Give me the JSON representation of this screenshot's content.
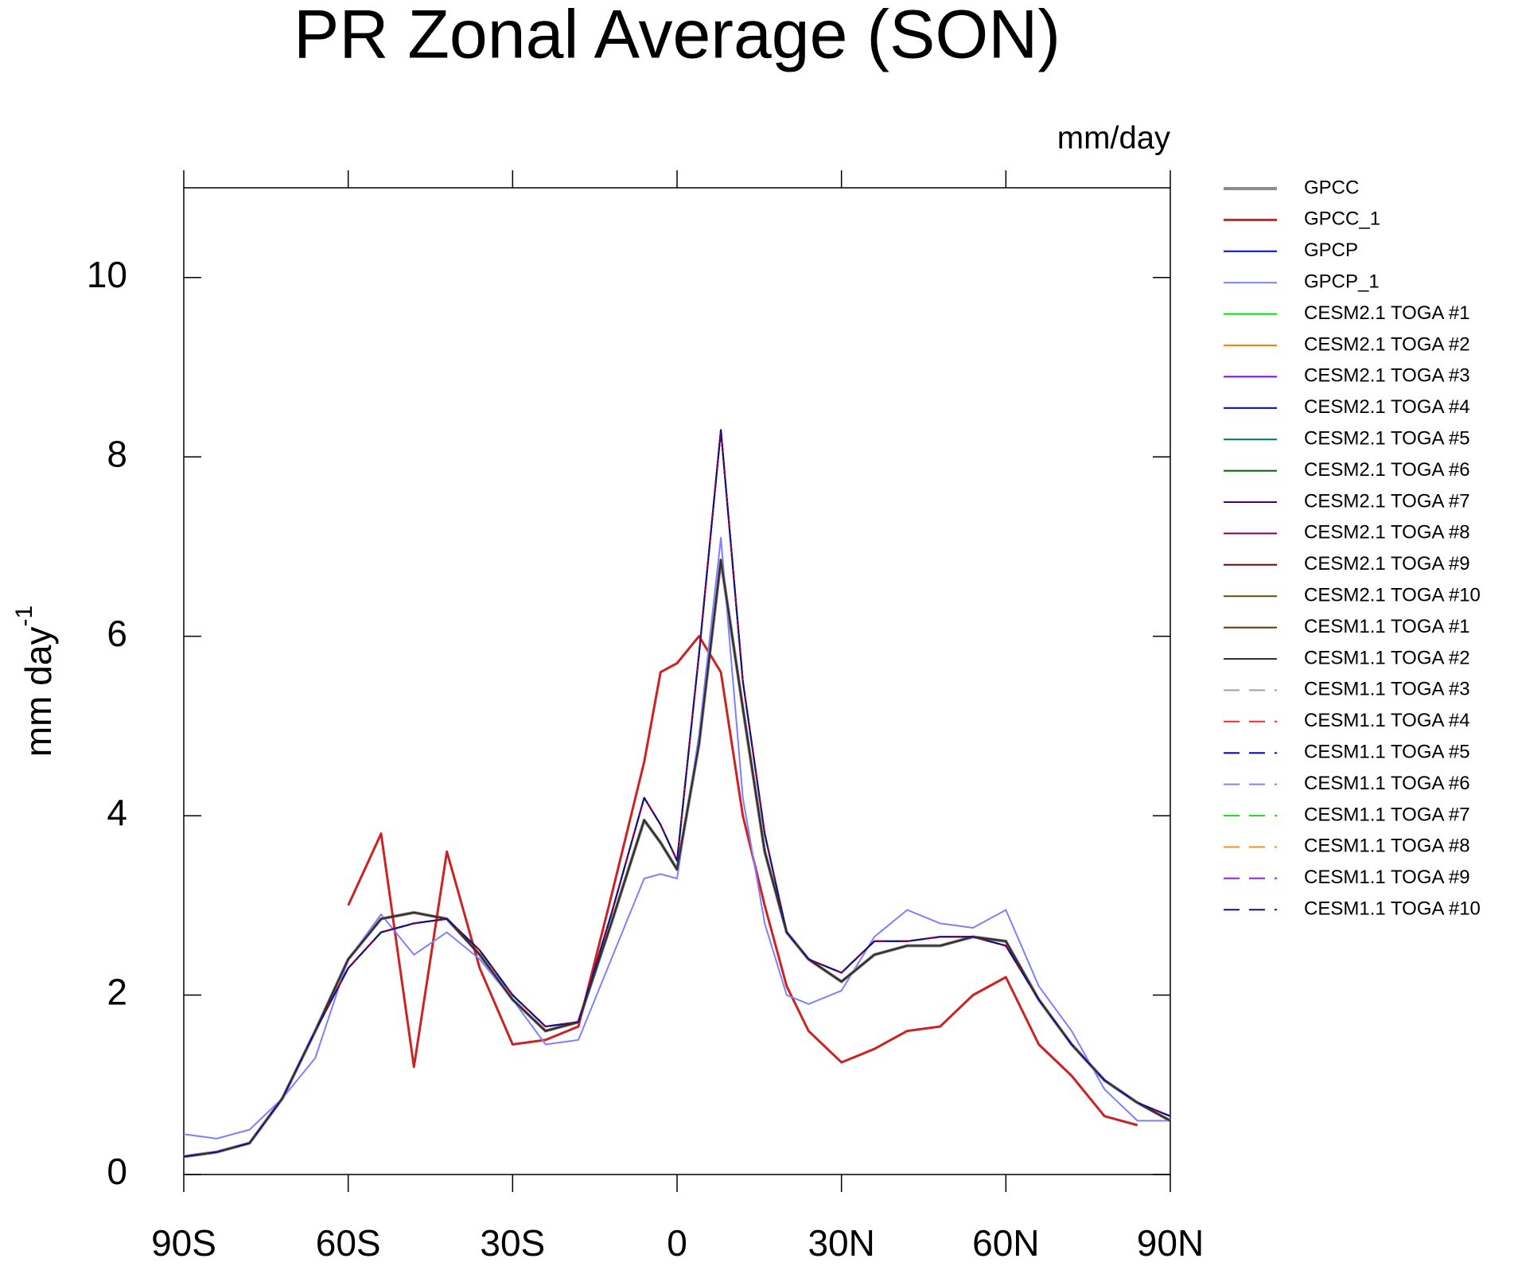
{
  "chart_data": {
    "type": "line",
    "title": "PR Zonal Average (SON)",
    "units_label": "mm/day",
    "ylabel": "mm day",
    "ylabel_exp": "-1",
    "xlim": [
      -90,
      90
    ],
    "ylim": [
      0,
      11
    ],
    "xticks": [
      {
        "value": -90,
        "label": "90S"
      },
      {
        "value": -60,
        "label": "60S"
      },
      {
        "value": -30,
        "label": "30S"
      },
      0,
      {
        "value": 30,
        "label": "30N"
      },
      {
        "value": 60,
        "label": "60N"
      },
      {
        "value": 90,
        "label": "90N"
      }
    ],
    "yticks": [
      0,
      2,
      4,
      6,
      8,
      10
    ],
    "x": [
      -90,
      -84,
      -78,
      -72,
      -66,
      -60,
      -54,
      -48,
      -42,
      -36,
      -30,
      -24,
      -18,
      -12,
      -6,
      -3,
      0,
      4,
      8,
      12,
      16,
      20,
      24,
      30,
      36,
      42,
      48,
      54,
      60,
      66,
      72,
      78,
      84,
      90
    ],
    "series": [
      {
        "name": "GPCC",
        "color": "#8c8c8c",
        "width": 4,
        "dash": false,
        "values": [
          0.2,
          0.25,
          0.35,
          0.85,
          1.6,
          2.4,
          2.85,
          2.92,
          2.85,
          2.45,
          1.95,
          1.6,
          1.7,
          2.8,
          3.95,
          3.7,
          3.4,
          4.8,
          6.85,
          5.2,
          3.6,
          2.7,
          2.4,
          2.15,
          2.45,
          2.55,
          2.55,
          2.65,
          2.6,
          1.95,
          1.45,
          1.05,
          0.8,
          0.6
        ]
      },
      {
        "name": "GPCC_1",
        "color": "#cc2222",
        "width": 3,
        "dash": false,
        "values": [
          null,
          null,
          null,
          null,
          null,
          3.0,
          3.8,
          1.2,
          3.6,
          2.3,
          1.45,
          1.5,
          1.65,
          3.1,
          4.6,
          5.6,
          5.7,
          6.0,
          5.6,
          4.0,
          3.0,
          2.1,
          1.6,
          1.25,
          1.4,
          1.6,
          1.65,
          2.0,
          2.2,
          1.45,
          1.1,
          0.65,
          0.55,
          null
        ]
      },
      {
        "name": "GPCP",
        "color": "#0000ff",
        "width": 2,
        "dash": false,
        "values": [
          0.2,
          0.25,
          0.35,
          0.85,
          1.6,
          2.4,
          2.85,
          2.92,
          2.85,
          2.45,
          1.95,
          1.6,
          1.7,
          2.8,
          3.95,
          3.7,
          3.4,
          4.8,
          6.85,
          5.2,
          3.6,
          2.7,
          2.4,
          2.15,
          2.45,
          2.55,
          2.55,
          2.65,
          2.6,
          1.95,
          1.45,
          1.05,
          0.8,
          0.6
        ]
      },
      {
        "name": "GPCP_1",
        "color": "#7f7fff",
        "width": 2,
        "dash": false,
        "values": [
          0.45,
          0.4,
          0.5,
          0.85,
          1.3,
          2.4,
          2.9,
          2.45,
          2.7,
          2.4,
          1.95,
          1.45,
          1.5,
          2.4,
          3.3,
          3.35,
          3.3,
          4.9,
          7.1,
          4.2,
          2.8,
          2.0,
          1.9,
          2.05,
          2.65,
          2.95,
          2.8,
          2.75,
          2.95,
          2.1,
          1.6,
          0.95,
          0.6,
          0.6
        ]
      },
      {
        "name": "CESM2.1 TOGA #1",
        "color": "#00e000",
        "width": 2,
        "dash": false,
        "values": [
          0.2,
          0.25,
          0.35,
          0.85,
          1.6,
          2.3,
          2.7,
          2.8,
          2.85,
          2.5,
          2.0,
          1.65,
          1.7,
          2.9,
          4.2,
          3.9,
          3.5,
          5.8,
          8.3,
          5.5,
          3.8,
          2.7,
          2.4,
          2.25,
          2.6,
          2.6,
          2.65,
          2.65,
          2.55,
          1.95,
          1.45,
          1.05,
          0.8,
          0.65
        ]
      },
      {
        "name": "CESM2.1 TOGA #2",
        "color": "#ff8000",
        "width": 2,
        "dash": false,
        "values": [
          0.2,
          0.25,
          0.35,
          0.85,
          1.6,
          2.3,
          2.7,
          2.8,
          2.85,
          2.5,
          2.0,
          1.65,
          1.7,
          2.9,
          4.2,
          3.9,
          3.5,
          5.8,
          8.3,
          5.5,
          3.8,
          2.7,
          2.4,
          2.25,
          2.6,
          2.6,
          2.65,
          2.65,
          2.55,
          1.95,
          1.45,
          1.05,
          0.8,
          0.65
        ]
      },
      {
        "name": "CESM2.1 TOGA #3",
        "color": "#8000ff",
        "width": 2,
        "dash": false,
        "values": [
          0.2,
          0.25,
          0.35,
          0.85,
          1.6,
          2.3,
          2.7,
          2.8,
          2.85,
          2.5,
          2.0,
          1.65,
          1.7,
          2.9,
          4.2,
          3.9,
          3.5,
          5.8,
          8.3,
          5.5,
          3.8,
          2.7,
          2.4,
          2.25,
          2.6,
          2.6,
          2.65,
          2.65,
          2.55,
          1.95,
          1.45,
          1.05,
          0.8,
          0.65
        ]
      },
      {
        "name": "CESM2.1 TOGA #4",
        "color": "#0000a0",
        "width": 2,
        "dash": false,
        "values": [
          0.2,
          0.25,
          0.35,
          0.85,
          1.6,
          2.3,
          2.7,
          2.8,
          2.85,
          2.5,
          2.0,
          1.65,
          1.7,
          2.9,
          4.2,
          3.9,
          3.5,
          5.8,
          8.3,
          5.5,
          3.8,
          2.7,
          2.4,
          2.25,
          2.6,
          2.6,
          2.65,
          2.65,
          2.55,
          1.95,
          1.45,
          1.05,
          0.8,
          0.65
        ]
      },
      {
        "name": "CESM2.1 TOGA #5",
        "color": "#007060",
        "width": 2,
        "dash": false,
        "values": [
          0.2,
          0.25,
          0.35,
          0.85,
          1.6,
          2.3,
          2.7,
          2.8,
          2.85,
          2.5,
          2.0,
          1.65,
          1.7,
          2.9,
          4.2,
          3.9,
          3.5,
          5.8,
          8.3,
          5.5,
          3.8,
          2.7,
          2.4,
          2.25,
          2.6,
          2.6,
          2.65,
          2.65,
          2.55,
          1.95,
          1.45,
          1.05,
          0.8,
          0.65
        ]
      },
      {
        "name": "CESM2.1 TOGA #6",
        "color": "#006000",
        "width": 2,
        "dash": false,
        "values": [
          0.2,
          0.25,
          0.35,
          0.85,
          1.6,
          2.3,
          2.7,
          2.8,
          2.85,
          2.5,
          2.0,
          1.65,
          1.7,
          2.9,
          4.2,
          3.9,
          3.5,
          5.8,
          8.3,
          5.5,
          3.8,
          2.7,
          2.4,
          2.25,
          2.6,
          2.6,
          2.65,
          2.65,
          2.55,
          1.95,
          1.45,
          1.05,
          0.8,
          0.65
        ]
      },
      {
        "name": "CESM2.1 TOGA #7",
        "color": "#400090",
        "width": 2,
        "dash": false,
        "values": [
          0.2,
          0.25,
          0.35,
          0.85,
          1.6,
          2.3,
          2.7,
          2.8,
          2.85,
          2.5,
          2.0,
          1.65,
          1.7,
          2.9,
          4.2,
          3.9,
          3.5,
          5.8,
          8.3,
          5.5,
          3.8,
          2.7,
          2.4,
          2.25,
          2.6,
          2.6,
          2.65,
          2.65,
          2.55,
          1.95,
          1.45,
          1.05,
          0.8,
          0.65
        ]
      },
      {
        "name": "CESM2.1 TOGA #8",
        "color": "#800050",
        "width": 2,
        "dash": false,
        "values": [
          0.2,
          0.25,
          0.35,
          0.85,
          1.6,
          2.3,
          2.7,
          2.8,
          2.85,
          2.5,
          2.0,
          1.65,
          1.7,
          2.9,
          4.2,
          3.9,
          3.5,
          5.8,
          8.3,
          5.5,
          3.8,
          2.7,
          2.4,
          2.25,
          2.6,
          2.6,
          2.65,
          2.65,
          2.55,
          1.95,
          1.45,
          1.05,
          0.8,
          0.65
        ]
      },
      {
        "name": "CESM2.1 TOGA #9",
        "color": "#800000",
        "width": 2,
        "dash": false,
        "values": [
          0.2,
          0.25,
          0.35,
          0.85,
          1.6,
          2.4,
          2.85,
          2.92,
          2.85,
          2.45,
          1.95,
          1.6,
          1.7,
          2.8,
          3.95,
          3.7,
          3.4,
          4.8,
          6.85,
          5.2,
          3.6,
          2.7,
          2.4,
          2.15,
          2.45,
          2.55,
          2.55,
          2.65,
          2.6,
          1.95,
          1.45,
          1.05,
          0.8,
          0.6
        ]
      },
      {
        "name": "CESM2.1 TOGA #10",
        "color": "#605000",
        "width": 2,
        "dash": false,
        "values": [
          0.2,
          0.25,
          0.35,
          0.85,
          1.6,
          2.4,
          2.85,
          2.92,
          2.85,
          2.45,
          1.95,
          1.6,
          1.7,
          2.8,
          3.95,
          3.7,
          3.4,
          4.8,
          6.85,
          5.2,
          3.6,
          2.7,
          2.4,
          2.15,
          2.45,
          2.55,
          2.55,
          2.65,
          2.6,
          1.95,
          1.45,
          1.05,
          0.8,
          0.6
        ]
      },
      {
        "name": "CESM1.1 TOGA #1",
        "color": "#603000",
        "width": 2,
        "dash": false,
        "values": [
          0.2,
          0.25,
          0.35,
          0.85,
          1.6,
          2.4,
          2.85,
          2.92,
          2.85,
          2.45,
          1.95,
          1.6,
          1.7,
          2.8,
          3.95,
          3.7,
          3.4,
          4.8,
          6.85,
          5.2,
          3.6,
          2.7,
          2.4,
          2.15,
          2.45,
          2.55,
          2.55,
          2.65,
          2.6,
          1.95,
          1.45,
          1.05,
          0.8,
          0.6
        ]
      },
      {
        "name": "CESM1.1 TOGA #2",
        "color": "#303030",
        "width": 2,
        "dash": false,
        "values": [
          0.2,
          0.25,
          0.35,
          0.85,
          1.6,
          2.4,
          2.85,
          2.92,
          2.85,
          2.45,
          1.95,
          1.6,
          1.7,
          2.8,
          3.95,
          3.7,
          3.4,
          4.8,
          6.85,
          5.2,
          3.6,
          2.7,
          2.4,
          2.15,
          2.45,
          2.55,
          2.55,
          2.65,
          2.6,
          1.95,
          1.45,
          1.05,
          0.8,
          0.6
        ]
      },
      {
        "name": "CESM1.1 TOGA #3",
        "color": "#a0a0a0",
        "width": 2,
        "dash": true,
        "values": [
          0.2,
          0.25,
          0.35,
          0.85,
          1.6,
          2.3,
          2.7,
          2.8,
          2.85,
          2.5,
          2.0,
          1.65,
          1.7,
          2.9,
          4.2,
          3.9,
          3.5,
          5.8,
          8.3,
          5.5,
          3.8,
          2.7,
          2.4,
          2.25,
          2.6,
          2.6,
          2.65,
          2.65,
          2.55,
          1.95,
          1.45,
          1.05,
          0.8,
          0.65
        ]
      },
      {
        "name": "CESM1.1 TOGA #4",
        "color": "#e03030",
        "width": 2,
        "dash": true,
        "values": [
          0.2,
          0.25,
          0.35,
          0.85,
          1.6,
          2.3,
          2.7,
          2.8,
          2.85,
          2.5,
          2.0,
          1.65,
          1.7,
          2.9,
          4.2,
          3.9,
          3.5,
          5.8,
          8.3,
          5.5,
          3.8,
          2.7,
          2.4,
          2.25,
          2.6,
          2.6,
          2.65,
          2.65,
          2.55,
          1.95,
          1.45,
          1.05,
          0.8,
          0.65
        ]
      },
      {
        "name": "CESM1.1 TOGA #5",
        "color": "#0000e0",
        "width": 2,
        "dash": true,
        "values": [
          0.2,
          0.25,
          0.35,
          0.85,
          1.6,
          2.3,
          2.7,
          2.8,
          2.85,
          2.5,
          2.0,
          1.65,
          1.7,
          2.9,
          4.2,
          3.9,
          3.5,
          5.8,
          8.3,
          5.5,
          3.8,
          2.7,
          2.4,
          2.25,
          2.6,
          2.6,
          2.65,
          2.65,
          2.55,
          1.95,
          1.45,
          1.05,
          0.8,
          0.65
        ]
      },
      {
        "name": "CESM1.1 TOGA #6",
        "color": "#8080ff",
        "width": 2,
        "dash": true,
        "values": [
          0.2,
          0.25,
          0.35,
          0.85,
          1.6,
          2.3,
          2.7,
          2.8,
          2.85,
          2.5,
          2.0,
          1.65,
          1.7,
          2.9,
          4.2,
          3.9,
          3.5,
          5.8,
          8.3,
          5.5,
          3.8,
          2.7,
          2.4,
          2.25,
          2.6,
          2.6,
          2.65,
          2.65,
          2.55,
          1.95,
          1.45,
          1.05,
          0.8,
          0.65
        ]
      },
      {
        "name": "CESM1.1 TOGA #7",
        "color": "#20e020",
        "width": 2,
        "dash": true,
        "values": [
          0.2,
          0.25,
          0.35,
          0.85,
          1.6,
          2.3,
          2.7,
          2.8,
          2.85,
          2.5,
          2.0,
          1.65,
          1.7,
          2.9,
          4.2,
          3.9,
          3.5,
          5.8,
          8.3,
          5.5,
          3.8,
          2.7,
          2.4,
          2.25,
          2.6,
          2.6,
          2.65,
          2.65,
          2.55,
          1.95,
          1.45,
          1.05,
          0.8,
          0.65
        ]
      },
      {
        "name": "CESM1.1 TOGA #8",
        "color": "#ff9020",
        "width": 2,
        "dash": true,
        "values": [
          0.2,
          0.25,
          0.35,
          0.85,
          1.6,
          2.3,
          2.7,
          2.8,
          2.85,
          2.5,
          2.0,
          1.65,
          1.7,
          2.9,
          4.2,
          3.9,
          3.5,
          5.8,
          8.3,
          5.5,
          3.8,
          2.7,
          2.4,
          2.25,
          2.6,
          2.6,
          2.65,
          2.65,
          2.55,
          1.95,
          1.45,
          1.05,
          0.8,
          0.65
        ]
      },
      {
        "name": "CESM1.1 TOGA #9",
        "color": "#9020ff",
        "width": 2,
        "dash": true,
        "values": [
          0.2,
          0.25,
          0.35,
          0.85,
          1.6,
          2.3,
          2.7,
          2.8,
          2.85,
          2.5,
          2.0,
          1.65,
          1.7,
          2.9,
          4.2,
          3.9,
          3.5,
          5.8,
          8.3,
          5.5,
          3.8,
          2.7,
          2.4,
          2.25,
          2.6,
          2.6,
          2.65,
          2.65,
          2.55,
          1.95,
          1.45,
          1.05,
          0.8,
          0.65
        ]
      },
      {
        "name": "CESM1.1 TOGA #10",
        "color": "#101080",
        "width": 2,
        "dash": true,
        "values": [
          0.2,
          0.25,
          0.35,
          0.85,
          1.6,
          2.3,
          2.7,
          2.8,
          2.85,
          2.5,
          2.0,
          1.65,
          1.7,
          2.9,
          4.2,
          3.9,
          3.5,
          5.8,
          8.3,
          5.5,
          3.8,
          2.7,
          2.4,
          2.25,
          2.6,
          2.6,
          2.65,
          2.65,
          2.55,
          1.95,
          1.45,
          1.05,
          0.8,
          0.65
        ]
      }
    ]
  }
}
